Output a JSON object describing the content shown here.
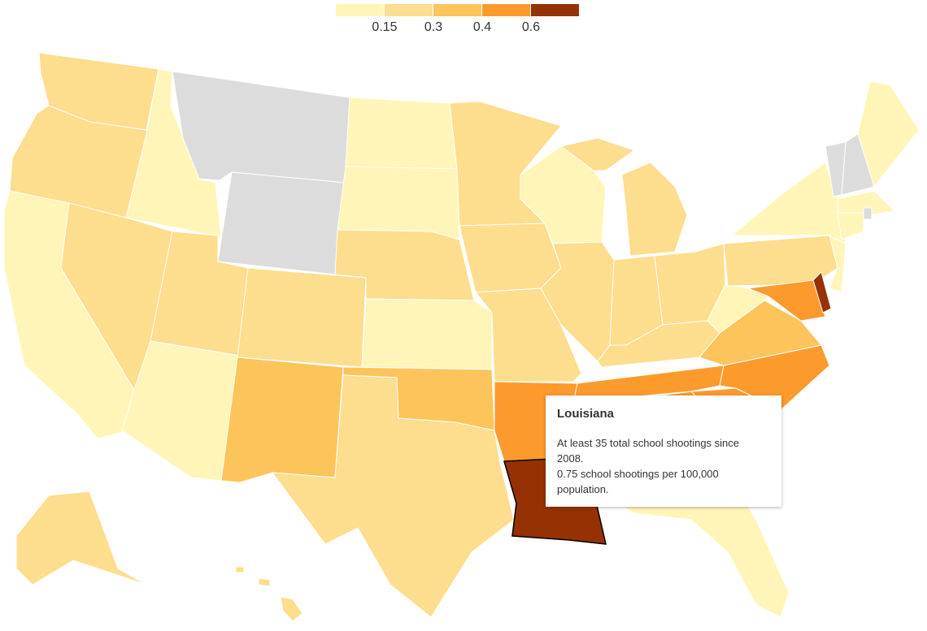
{
  "legend": {
    "thresholds": [
      0.15,
      0.3,
      0.4,
      0.6
    ],
    "colors": [
      "#fff5b9",
      "#fddd8e",
      "#fcc45b",
      "#fd9a2c",
      "#963103"
    ]
  },
  "tooltip": {
    "title": "Louisiana",
    "lines": [
      "At least 35 total school shootings since 2008.",
      "0.75 school shootings per 100,000 population."
    ]
  }
}
